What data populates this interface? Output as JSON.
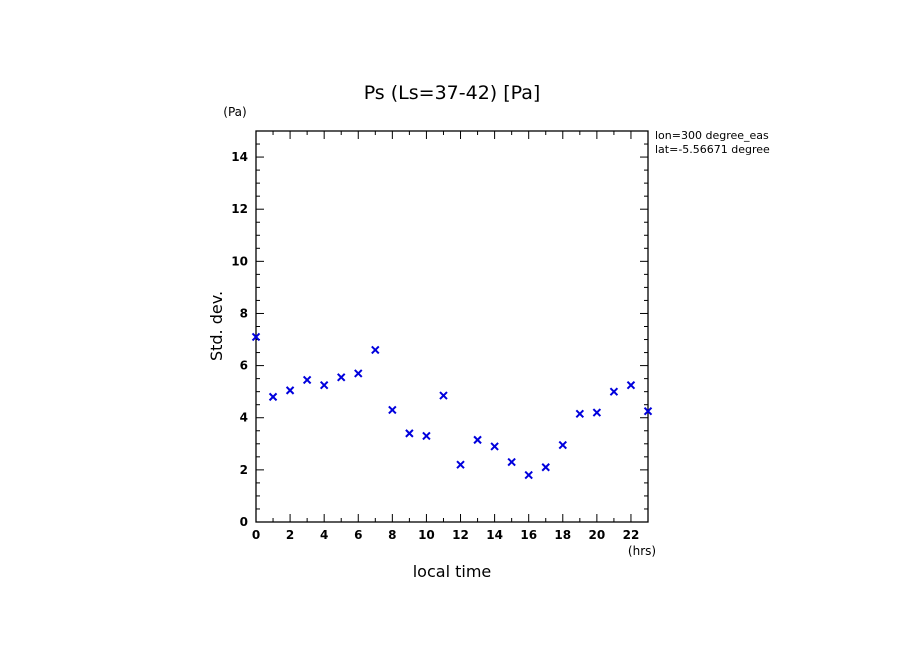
{
  "chart_data": {
    "type": "scatter",
    "title": "Ps (Ls=37-42) [Pa]",
    "xlabel": "local time",
    "ylabel": "Std. dev.",
    "x_unit": "(hrs)",
    "y_unit": "(Pa)",
    "xlim": [
      0,
      23
    ],
    "ylim": [
      0,
      15
    ],
    "x_ticks": [
      0,
      2,
      4,
      6,
      8,
      10,
      12,
      14,
      16,
      18,
      20,
      22
    ],
    "y_ticks": [
      0,
      2,
      4,
      6,
      8,
      10,
      12,
      14
    ],
    "grid": false,
    "marker": "x",
    "marker_color": "#0000dd",
    "annotations": [
      "lon=300 degree_eas",
      "lat=-5.56671 degree"
    ],
    "x": [
      0,
      1,
      2,
      3,
      4,
      5,
      6,
      7,
      8,
      9,
      10,
      11,
      12,
      13,
      14,
      15,
      16,
      17,
      18,
      19,
      20,
      21,
      22,
      23
    ],
    "values": [
      7.1,
      4.8,
      5.05,
      5.45,
      5.25,
      5.55,
      5.7,
      6.6,
      4.3,
      3.4,
      3.3,
      4.85,
      2.2,
      3.15,
      2.9,
      2.3,
      1.8,
      2.1,
      2.95,
      4.15,
      4.2,
      5.0,
      5.25,
      4.25
    ]
  }
}
